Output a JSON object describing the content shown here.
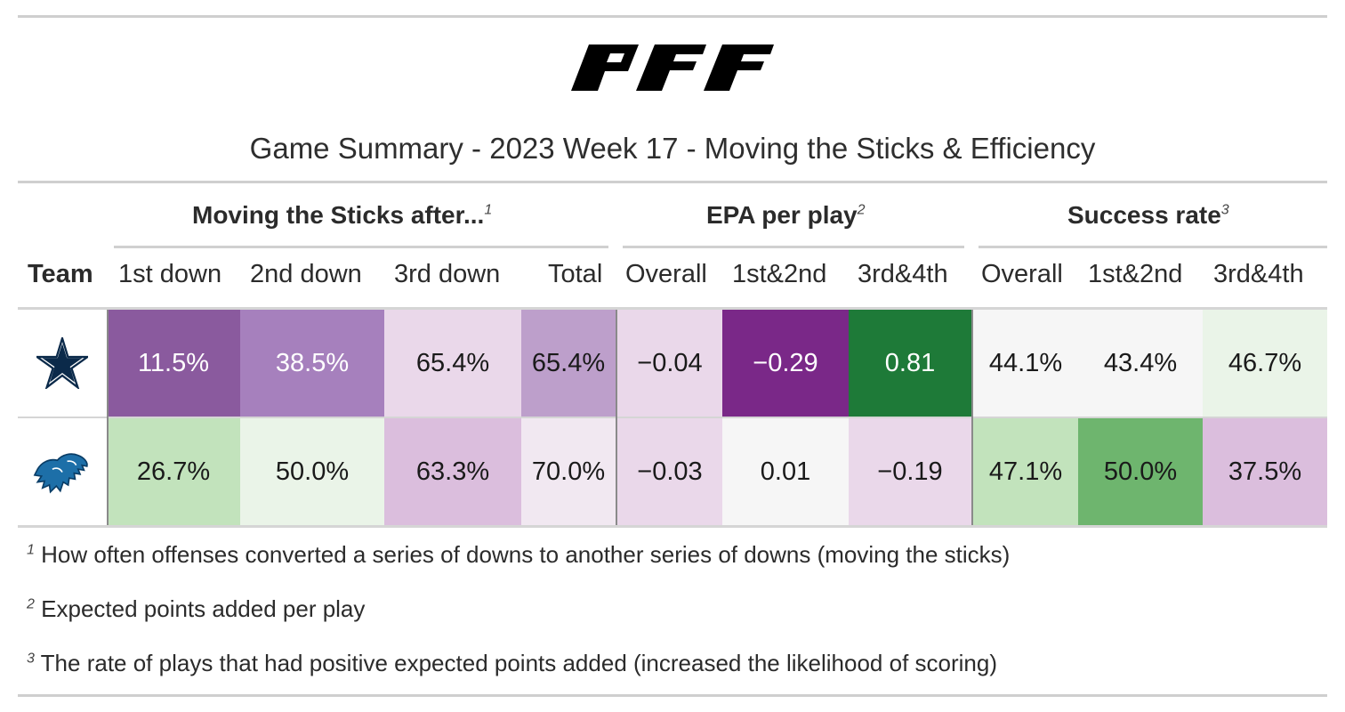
{
  "title": "Game Summary - 2023 Week 17 - Moving the Sticks & Efficiency",
  "logo_text": "PFF",
  "team_header": "Team",
  "groups": [
    {
      "label": "Moving the Sticks after...",
      "note": "1"
    },
    {
      "label": "EPA per play",
      "note": "2"
    },
    {
      "label": "Success rate",
      "note": "3"
    }
  ],
  "columns": [
    "1st down",
    "2nd down",
    "3rd down",
    "Total",
    "Overall",
    "1st&2nd",
    "3rd&4th",
    "Overall",
    "1st&2nd",
    "3rd&4th"
  ],
  "chart_data": {
    "type": "table",
    "title": "Game Summary - 2023 Week 17 - Moving the Sticks & Efficiency",
    "teams": [
      "dallas-cowboys-logo",
      "detroit-lions-logo"
    ],
    "columns": [
      "1st down",
      "2nd down",
      "3rd down",
      "Total",
      "Overall",
      "1st&2nd",
      "3rd&4th",
      "Overall",
      "1st&2nd",
      "3rd&4th"
    ],
    "rows": [
      {
        "team_icon": "star-icon",
        "values": [
          "11.5%",
          "38.5%",
          "65.4%",
          "65.4%",
          "−0.04",
          "−0.29",
          "0.81",
          "44.1%",
          "43.4%",
          "46.7%"
        ]
      },
      {
        "team_icon": "lion-icon",
        "values": [
          "26.7%",
          "50.0%",
          "63.3%",
          "70.0%",
          "−0.03",
          "0.01",
          "−0.19",
          "47.1%",
          "50.0%",
          "37.5%"
        ]
      }
    ],
    "cell_colors": [
      [
        "#8a5a9e",
        "#a680bd",
        "#ead8ea",
        "#bd9fcb",
        "#ead8ea",
        "#7a2888",
        "#1e7a38",
        "#f6f6f6",
        "#f6f6f6",
        "#eaf4e8"
      ],
      [
        "#c2e3bc",
        "#eaf4e8",
        "#dbbedd",
        "#f1e8f1",
        "#ead8ea",
        "#f6f6f6",
        "#ead8ea",
        "#c2e3bc",
        "#6eb56e",
        "#dbbedd"
      ]
    ],
    "text_colors": [
      [
        "#ffffff",
        "#ffffff",
        "#1a1a1a",
        "#1a1a1a",
        "#1a1a1a",
        "#ffffff",
        "#ffffff",
        "#1a1a1a",
        "#1a1a1a",
        "#1a1a1a"
      ],
      [
        "#1a1a1a",
        "#1a1a1a",
        "#1a1a1a",
        "#1a1a1a",
        "#1a1a1a",
        "#1a1a1a",
        "#1a1a1a",
        "#1a1a1a",
        "#1a1a1a",
        "#1a1a1a"
      ]
    ]
  },
  "footnotes": [
    {
      "mark": "1",
      "text": "How often offenses converted a series of downs to another series of downs (moving the sticks)"
    },
    {
      "mark": "2",
      "text": "Expected points added per play"
    },
    {
      "mark": "3",
      "text": "The rate of plays that had positive expected points added (increased the likelihood of scoring)"
    }
  ]
}
